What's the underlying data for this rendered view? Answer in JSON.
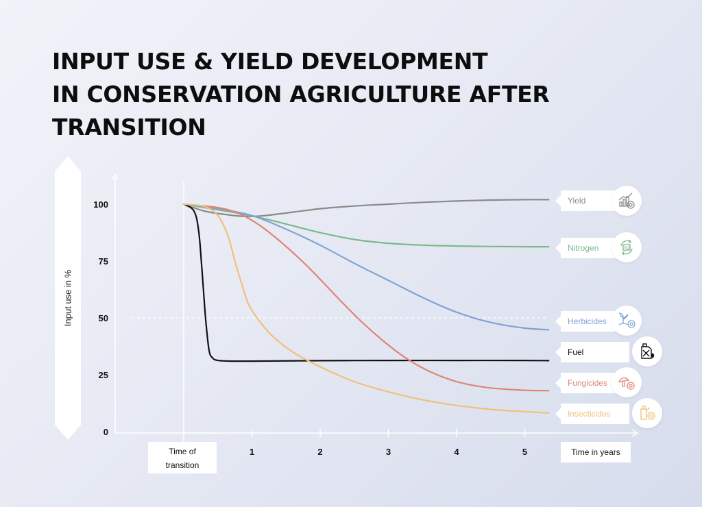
{
  "title_lines": [
    "INPUT USE & YIELD DEVELOPMENT",
    "IN CONSERVATION AGRICULTURE AFTER",
    "TRANSITION"
  ],
  "chart_data": {
    "type": "line",
    "ylabel": "Input use in %",
    "xlabel": "Time in years",
    "x_origin_label": "Time of transition",
    "x_origin_lines": [
      "Time of",
      "transition"
    ],
    "yticks": [
      0,
      25,
      50,
      75,
      100
    ],
    "xticks": [
      1,
      2,
      3,
      4,
      5
    ],
    "ylim": [
      0,
      110
    ],
    "xlim": [
      0,
      5.4
    ],
    "reference_line": 50,
    "series": [
      {
        "name": "Yield",
        "color": "#8a8a8a",
        "points": [
          [
            0,
            100
          ],
          [
            0.3,
            97
          ],
          [
            0.6,
            95.5
          ],
          [
            0.9,
            94.6
          ],
          [
            1.2,
            95
          ],
          [
            1.6,
            96.5
          ],
          [
            2,
            98
          ],
          [
            2.5,
            99.2
          ],
          [
            3,
            100
          ],
          [
            3.5,
            100.8
          ],
          [
            4,
            101.4
          ],
          [
            4.5,
            101.8
          ],
          [
            5,
            102
          ],
          [
            5.35,
            102
          ]
        ]
      },
      {
        "name": "Nitrogen",
        "color": "#7ab98a",
        "points": [
          [
            0,
            100
          ],
          [
            0.4,
            98
          ],
          [
            0.8,
            96
          ],
          [
            1.2,
            93.5
          ],
          [
            1.6,
            90.5
          ],
          [
            2,
            87.5
          ],
          [
            2.5,
            84.5
          ],
          [
            3,
            82.8
          ],
          [
            3.5,
            82
          ],
          [
            4,
            81.6
          ],
          [
            4.5,
            81.4
          ],
          [
            5,
            81.3
          ],
          [
            5.35,
            81.3
          ]
        ]
      },
      {
        "name": "Herbicides",
        "color": "#7fa3d6",
        "points": [
          [
            0,
            100
          ],
          [
            0.5,
            98
          ],
          [
            1,
            95
          ],
          [
            1.5,
            89
          ],
          [
            2,
            82
          ],
          [
            2.5,
            74
          ],
          [
            3,
            66.5
          ],
          [
            3.5,
            59
          ],
          [
            4,
            52.5
          ],
          [
            4.5,
            48
          ],
          [
            5,
            45.5
          ],
          [
            5.35,
            44.8
          ]
        ]
      },
      {
        "name": "Fuel",
        "color": "#111111",
        "points": [
          [
            0,
            100
          ],
          [
            0.15,
            97
          ],
          [
            0.22,
            88
          ],
          [
            0.27,
            70
          ],
          [
            0.32,
            50
          ],
          [
            0.37,
            36
          ],
          [
            0.42,
            32.5
          ],
          [
            0.5,
            31.3
          ],
          [
            0.7,
            31
          ],
          [
            1,
            31
          ],
          [
            2,
            31.2
          ],
          [
            3,
            31.3
          ],
          [
            4,
            31.3
          ],
          [
            5,
            31.3
          ],
          [
            5.35,
            31.2
          ]
        ]
      },
      {
        "name": "Fungicides",
        "color": "#de8673",
        "points": [
          [
            0,
            100
          ],
          [
            0.5,
            98.5
          ],
          [
            0.8,
            96
          ],
          [
            1.1,
            91
          ],
          [
            1.4,
            84
          ],
          [
            1.7,
            76
          ],
          [
            2,
            67
          ],
          [
            2.3,
            57.5
          ],
          [
            2.6,
            48.5
          ],
          [
            2.9,
            40.5
          ],
          [
            3.2,
            33.5
          ],
          [
            3.5,
            28
          ],
          [
            3.8,
            24
          ],
          [
            4.1,
            21.2
          ],
          [
            4.5,
            19.2
          ],
          [
            5,
            18.2
          ],
          [
            5.35,
            18
          ]
        ]
      },
      {
        "name": "Insecticides",
        "color": "#f0c07a",
        "points": [
          [
            0,
            100
          ],
          [
            0.3,
            99
          ],
          [
            0.5,
            95
          ],
          [
            0.65,
            86
          ],
          [
            0.75,
            75
          ],
          [
            0.85,
            65
          ],
          [
            0.95,
            56
          ],
          [
            1.1,
            49
          ],
          [
            1.3,
            42
          ],
          [
            1.6,
            35
          ],
          [
            2,
            28.5
          ],
          [
            2.5,
            22
          ],
          [
            3,
            17.5
          ],
          [
            3.5,
            14
          ],
          [
            4,
            11.5
          ],
          [
            4.5,
            9.8
          ],
          [
            5,
            8.8
          ],
          [
            5.35,
            8.2
          ]
        ]
      }
    ]
  },
  "legend_icons": [
    {
      "series": "Yield",
      "icon": "yield-chart-icon"
    },
    {
      "series": "Nitrogen",
      "icon": "nitrogen-cycle-icon"
    },
    {
      "series": "Herbicides",
      "icon": "weed-spray-icon"
    },
    {
      "series": "Fuel",
      "icon": "fuel-canister-icon"
    },
    {
      "series": "Fungicides",
      "icon": "mushroom-icon"
    },
    {
      "series": "Insecticides",
      "icon": "insect-spray-icon"
    }
  ],
  "colors": {
    "axis": "#ffffff",
    "tick_text": "#111111",
    "ref_line": "#ffffff"
  }
}
